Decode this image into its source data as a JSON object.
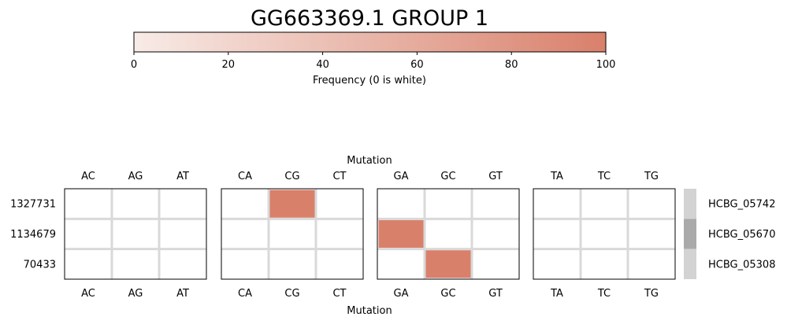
{
  "chart_data": {
    "type": "heatmap",
    "title": "GG663369.1 GROUP 1",
    "colorbar": {
      "label": "Frequency (0 is white)",
      "range": [
        0,
        100
      ],
      "ticks": [
        0,
        20,
        40,
        60,
        80,
        100
      ],
      "color_low": "#f8ebe7",
      "color_high": "#d9806b"
    },
    "xlabel": "Mutation",
    "panels": [
      {
        "columns": [
          "AC",
          "AG",
          "AT"
        ]
      },
      {
        "columns": [
          "CA",
          "CG",
          "CT"
        ]
      },
      {
        "columns": [
          "GA",
          "GC",
          "GT"
        ]
      },
      {
        "columns": [
          "TA",
          "TC",
          "TG"
        ]
      }
    ],
    "rows": [
      "1327731",
      "1134679",
      "70433"
    ],
    "genes": [
      "HCBG_05742",
      "HCBG_05670",
      "HCBG_05308"
    ],
    "gene_colors": [
      "#d3d3d3",
      "#aaaaaa",
      "#d3d3d3"
    ],
    "cells": [
      {
        "row": "1327731",
        "mutation": "CG",
        "value": 100
      },
      {
        "row": "1134679",
        "mutation": "GA",
        "value": 100
      },
      {
        "row": "70433",
        "mutation": "GC",
        "value": 100
      }
    ]
  }
}
